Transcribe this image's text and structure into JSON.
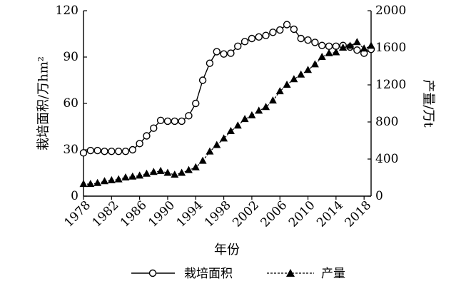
{
  "chart_data": {
    "type": "line",
    "xlabel": "年份",
    "x_ticks": [
      1978,
      1982,
      1986,
      1990,
      1994,
      1998,
      2002,
      2006,
      2010,
      2014,
      2018
    ],
    "xlim": [
      1978,
      2019
    ],
    "y_left": {
      "label": "栽培面积/万hm²",
      "ticks": [
        0,
        30,
        60,
        90,
        120
      ],
      "lim": [
        0,
        120
      ]
    },
    "y_right": {
      "label": "产量/万t",
      "ticks": [
        0,
        400,
        800,
        1200,
        1600,
        2000
      ],
      "lim": [
        0,
        2000
      ]
    },
    "legend_position": "bottom",
    "grid": false,
    "series": [
      {
        "name": "栽培面积",
        "axis": "left",
        "marker": "open-circle",
        "line": "solid",
        "x": [
          1978,
          1979,
          1980,
          1981,
          1982,
          1983,
          1984,
          1985,
          1986,
          1987,
          1988,
          1989,
          1990,
          1991,
          1992,
          1993,
          1994,
          1995,
          1996,
          1997,
          1998,
          1999,
          2000,
          2001,
          2002,
          2003,
          2004,
          2005,
          2006,
          2007,
          2008,
          2009,
          2010,
          2011,
          2012,
          2013,
          2014,
          2015,
          2016,
          2017,
          2018,
          2019
        ],
        "values": [
          28,
          29.5,
          29.5,
          29,
          29,
          29,
          29,
          30,
          34,
          39,
          44,
          49,
          48.5,
          48.5,
          48.5,
          52,
          60,
          75,
          86,
          93.5,
          92,
          92.5,
          97,
          100,
          102,
          103,
          104,
          106,
          107.5,
          111,
          108,
          102,
          101,
          99.5,
          97.5,
          97,
          97,
          97.5,
          96.5,
          94.5,
          92.5,
          95
        ]
      },
      {
        "name": "产量",
        "axis": "right",
        "marker": "filled-triangle",
        "line": "dashed",
        "x": [
          1978,
          1979,
          1980,
          1981,
          1982,
          1983,
          1984,
          1985,
          1986,
          1987,
          1988,
          1989,
          1990,
          1991,
          1992,
          1993,
          1994,
          1995,
          1996,
          1997,
          1998,
          1999,
          2000,
          2001,
          2002,
          2003,
          2004,
          2005,
          2006,
          2007,
          2008,
          2009,
          2010,
          2011,
          2012,
          2013,
          2014,
          2015,
          2016,
          2017,
          2018,
          2019
        ],
        "values": [
          130,
          130,
          140,
          160,
          170,
          180,
          200,
          210,
          220,
          240,
          260,
          270,
          250,
          230,
          250,
          280,
          310,
          380,
          480,
          550,
          620,
          700,
          760,
          830,
          870,
          920,
          960,
          1030,
          1130,
          1200,
          1260,
          1310,
          1360,
          1420,
          1500,
          1540,
          1550,
          1600,
          1620,
          1660,
          1590,
          1620
        ]
      }
    ]
  }
}
